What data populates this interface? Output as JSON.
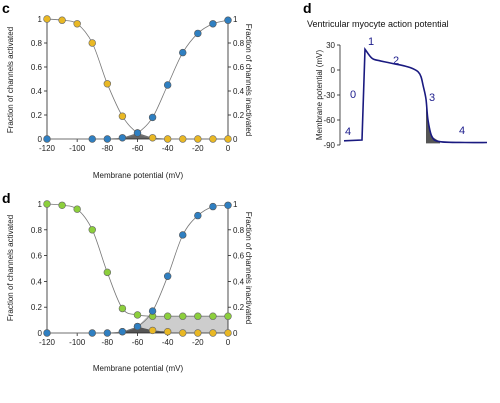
{
  "panel_labels": {
    "c": "c",
    "d_top": "d",
    "d_bottom": "d"
  },
  "colors": {
    "activation": "#2f7fc1",
    "inactivation_c": "#e9b824",
    "inactivation_d": "#8ccf3c",
    "window_c": "#555555",
    "window_d": "#c8c8c8",
    "ap_trace": "#1a1a80",
    "ap_window": "#555555"
  },
  "chart_data": [
    {
      "id": "c",
      "type": "scatter",
      "xlabel": "Membrane potential (mV)",
      "ylabel": "Fraction of channels activated",
      "ylabel_right": "Fraction of channels inactivated",
      "xlim": [
        -120,
        0
      ],
      "ylim": [
        0,
        1
      ],
      "xticks": [
        "-120",
        "-100",
        "-80",
        "-60",
        "-40",
        "-20",
        "0"
      ],
      "yticks": [
        "0",
        "0.2",
        "0.4",
        "0.6",
        "0.8",
        "1"
      ],
      "series": [
        {
          "role": "activation",
          "x": [
            -120,
            -90,
            -80,
            -70,
            -60,
            -50,
            -40,
            -30,
            -20,
            -10,
            0
          ],
          "y": [
            0,
            0,
            0,
            0.01,
            0.05,
            0.18,
            0.45,
            0.72,
            0.88,
            0.96,
            0.99
          ]
        },
        {
          "role": "inactivation",
          "x": [
            -120,
            -110,
            -100,
            -90,
            -80,
            -70,
            -60,
            -50,
            -40,
            -30,
            -20,
            -10,
            0
          ],
          "y": [
            1.0,
            0.99,
            0.96,
            0.8,
            0.46,
            0.19,
            0.05,
            0.01,
            0,
            0,
            0,
            0,
            0
          ]
        }
      ]
    },
    {
      "id": "d_bottom",
      "type": "scatter",
      "xlabel": "Membrane potential (mV)",
      "ylabel": "Fraction of channels activated",
      "ylabel_right": "Fraction of channels inactivated",
      "xlim": [
        -120,
        0
      ],
      "ylim": [
        0,
        1
      ],
      "xticks": [
        "-120",
        "-100",
        "-80",
        "-60",
        "-40",
        "-20",
        "0"
      ],
      "yticks": [
        "0",
        "0.2",
        "0.4",
        "0.6",
        "0.8",
        "1"
      ],
      "series": [
        {
          "role": "activation",
          "x": [
            -120,
            -90,
            -80,
            -70,
            -60,
            -50,
            -40,
            -30,
            -20,
            -10,
            0
          ],
          "y": [
            0,
            0,
            0,
            0.01,
            0.05,
            0.17,
            0.44,
            0.76,
            0.91,
            0.98,
            0.99
          ]
        },
        {
          "role": "inactivation",
          "x": [
            -120,
            -110,
            -100,
            -90,
            -80,
            -70,
            -60,
            -50,
            -40,
            -30,
            -20,
            -10,
            0
          ],
          "y": [
            1.0,
            0.99,
            0.96,
            0.8,
            0.47,
            0.19,
            0.14,
            0.13,
            0.13,
            0.13,
            0.13,
            0.13,
            0.13
          ]
        },
        {
          "role": "late-current",
          "x": [
            -70,
            -60,
            -50,
            -40,
            -30,
            -20,
            -10,
            0
          ],
          "y": [
            0.01,
            0.05,
            0.02,
            0.01,
            0,
            0,
            0,
            0
          ]
        }
      ]
    },
    {
      "id": "d_top",
      "type": "line",
      "title": "Ventricular myocyte action potential",
      "ylabel": "Membrane potential (mV)",
      "ylim": [
        -90,
        30
      ],
      "yticks": [
        "30",
        "0",
        "-30",
        "-60",
        "-90"
      ],
      "phase_labels": [
        "0",
        "1",
        "2",
        "3",
        "4",
        "4"
      ],
      "trace_mV": [
        -85,
        -85,
        -84,
        25,
        14,
        11,
        9,
        7,
        5,
        3,
        1,
        -2,
        -8,
        -18,
        -35,
        -60,
        -80,
        -86,
        -87,
        -87
      ]
    }
  ]
}
